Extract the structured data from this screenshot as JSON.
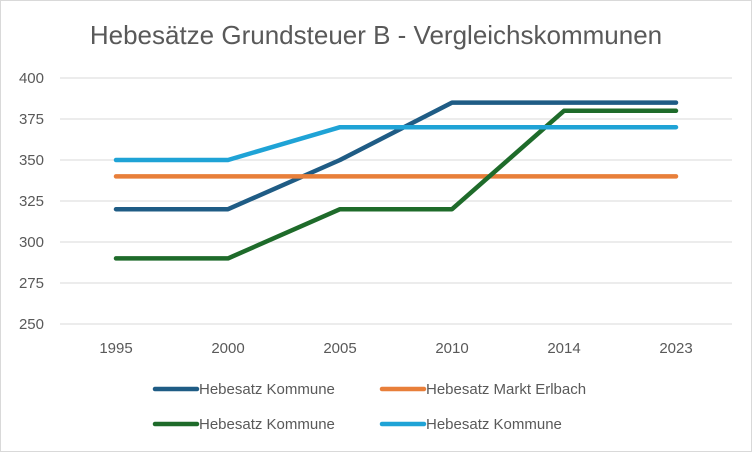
{
  "chart_data": {
    "type": "line",
    "title": "Hebesätze Grundsteuer B - Vergleichskommunen",
    "xlabel": "",
    "ylabel": "",
    "categories": [
      "1995",
      "2000",
      "2005",
      "2010",
      "2014",
      "2023"
    ],
    "ylim": [
      250,
      400
    ],
    "yticks": [
      "250",
      "275",
      "300",
      "325",
      "350",
      "375",
      "400"
    ],
    "grid": true,
    "legend_position": "bottom",
    "series": [
      {
        "name": "Hebesatz Kommune",
        "color": "#1f5c85",
        "values": [
          320,
          320,
          350,
          385,
          385,
          385
        ]
      },
      {
        "name": "Hebesatz Markt Erlbach",
        "color": "#e87f3a",
        "values": [
          340,
          340,
          340,
          340,
          340,
          340
        ]
      },
      {
        "name": "Hebesatz Kommune",
        "color": "#1e6b2a",
        "values": [
          290,
          290,
          320,
          320,
          380,
          380
        ]
      },
      {
        "name": "Hebesatz Kommune",
        "color": "#1fa3d6",
        "values": [
          350,
          350,
          370,
          370,
          370,
          370
        ]
      }
    ]
  }
}
